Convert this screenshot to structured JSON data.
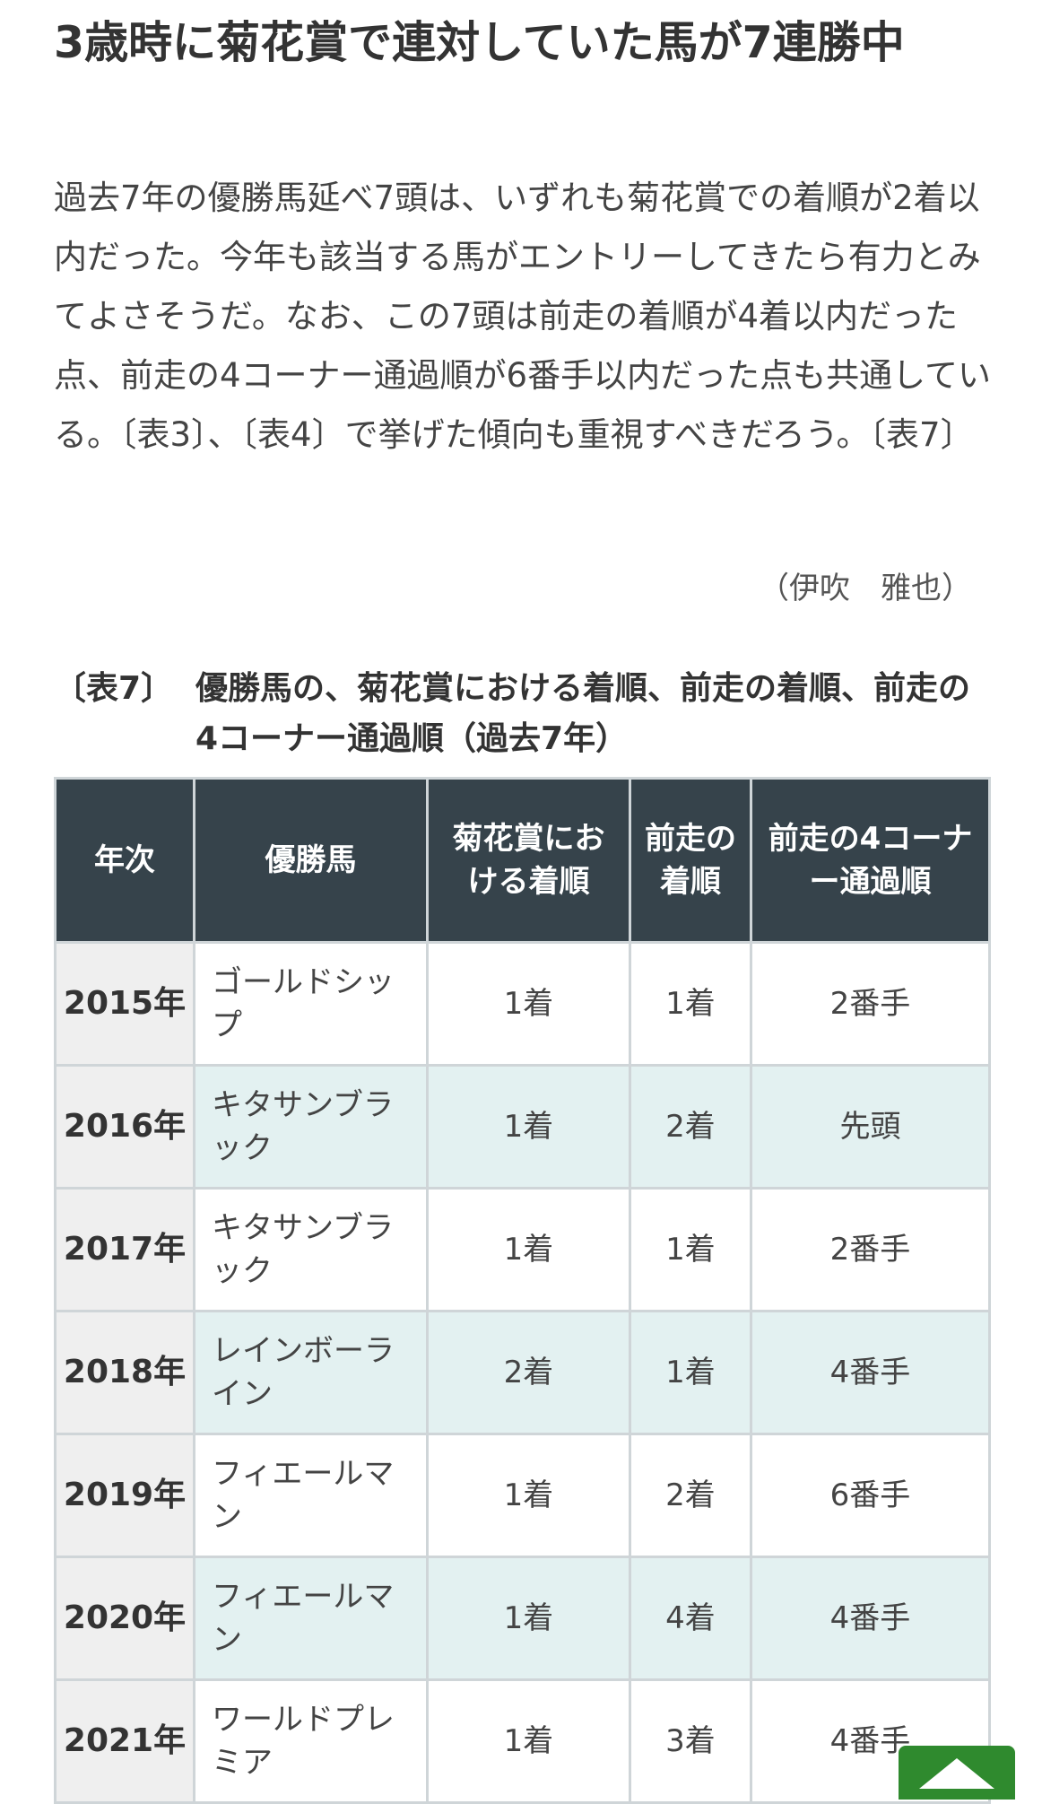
{
  "article": {
    "heading": "3歳時に菊花賞で連対していた馬が7連勝中",
    "body": "過去7年の優勝馬延べ7頭は、いずれも菊花賞での着順が2着以内だった。今年も該当する馬がエントリーしてきたら有力とみてよさそうだ。なお、この7頭は前走の着順が4着以内だった点、前走の4コーナー通過順が6番手以内だった点も共通している。〔表3〕、〔表4〕で挙げた傾向も重視すべきだろう。〔表7〕",
    "author": "（伊吹　雅也）"
  },
  "table": {
    "caption_number": "〔表7〕",
    "caption_text": "優勝馬の、菊花賞における着順、前走の着順、前走の4コーナー通過順（過去7年）",
    "headers": [
      "年次",
      "優勝馬",
      "菊花賞における着順",
      "前走の着順",
      "前走の4コーナー通過順"
    ],
    "rows": [
      {
        "year": "2015年",
        "horse": "ゴールドシップ",
        "kikka": "1着",
        "prev": "1着",
        "corner": "2番手"
      },
      {
        "year": "2016年",
        "horse": "キタサンブラック",
        "kikka": "1着",
        "prev": "2着",
        "corner": "先頭"
      },
      {
        "year": "2017年",
        "horse": "キタサンブラック",
        "kikka": "1着",
        "prev": "1着",
        "corner": "2番手"
      },
      {
        "year": "2018年",
        "horse": "レインボーライン",
        "kikka": "2着",
        "prev": "1着",
        "corner": "4番手"
      },
      {
        "year": "2019年",
        "horse": "フィエールマン",
        "kikka": "1着",
        "prev": "2着",
        "corner": "6番手"
      },
      {
        "year": "2020年",
        "horse": "フィエールマン",
        "kikka": "1着",
        "prev": "4着",
        "corner": "4番手"
      },
      {
        "year": "2021年",
        "horse": "ワールドプレミア",
        "kikka": "1着",
        "prev": "3着",
        "corner": "4番手"
      }
    ]
  },
  "ui": {
    "back_to_top_icon": "triangle-up-icon"
  },
  "colors": {
    "header_bg": "#36434b",
    "alt_row_bg": "#e3f1f1",
    "year_bg": "#efefef",
    "button_bg": "#2f8a2e"
  }
}
